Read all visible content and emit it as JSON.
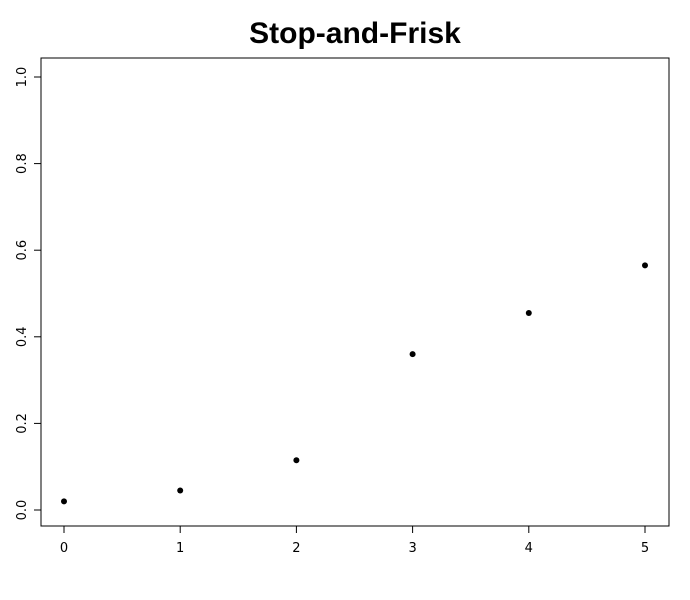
{
  "chart_data": {
    "type": "scatter",
    "title": "Stop-and-Frisk",
    "xlabel": "",
    "ylabel": "",
    "xlim": [
      0,
      5
    ],
    "ylim": [
      0,
      1
    ],
    "x_ticks": [
      0,
      1,
      2,
      3,
      4,
      5
    ],
    "x_tick_labels": [
      "0",
      "1",
      "2",
      "3",
      "4",
      "5"
    ],
    "y_ticks": [
      0.0,
      0.2,
      0.4,
      0.6,
      0.8,
      1.0
    ],
    "y_tick_labels": [
      "0.0",
      "0.2",
      "0.4",
      "0.6",
      "0.8",
      "1.0"
    ],
    "grid": false,
    "point_color": "#000000",
    "x": [
      0,
      1,
      2,
      3,
      4,
      5
    ],
    "y": [
      0.02,
      0.045,
      0.115,
      0.36,
      0.455,
      0.565
    ]
  }
}
